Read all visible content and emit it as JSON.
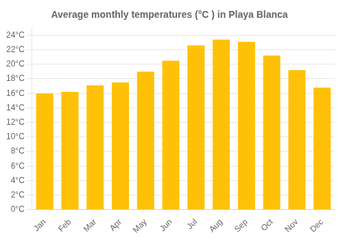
{
  "chart_data": {
    "type": "bar",
    "title": "Average monthly temperatures (°C ) in Playa Blanca",
    "categories": [
      "Jan",
      "Feb",
      "Mar",
      "Apr",
      "May",
      "Jun",
      "Jul",
      "Aug",
      "Sep",
      "Oct",
      "Nov",
      "Dec"
    ],
    "values": [
      16.0,
      16.2,
      17.1,
      17.5,
      19.0,
      20.5,
      22.6,
      23.4,
      23.1,
      21.2,
      19.2,
      16.8
    ],
    "color": "#FFC107",
    "ylim": [
      0,
      25
    ],
    "yticks": [
      {
        "value": 0,
        "label": "0°C"
      },
      {
        "value": 2,
        "label": "2°C"
      },
      {
        "value": 4,
        "label": "4°C"
      },
      {
        "value": 6,
        "label": "6°C"
      },
      {
        "value": 8,
        "label": "8°C"
      },
      {
        "value": 10,
        "label": "10°C"
      },
      {
        "value": 12,
        "label": "12°C"
      },
      {
        "value": 14,
        "label": "14°C"
      },
      {
        "value": 16,
        "label": "16°C"
      },
      {
        "value": 18,
        "label": "18°C"
      },
      {
        "value": 20,
        "label": "20°C"
      },
      {
        "value": 22,
        "label": "22°C"
      },
      {
        "value": 24,
        "label": "24°C"
      }
    ],
    "grid": true
  }
}
